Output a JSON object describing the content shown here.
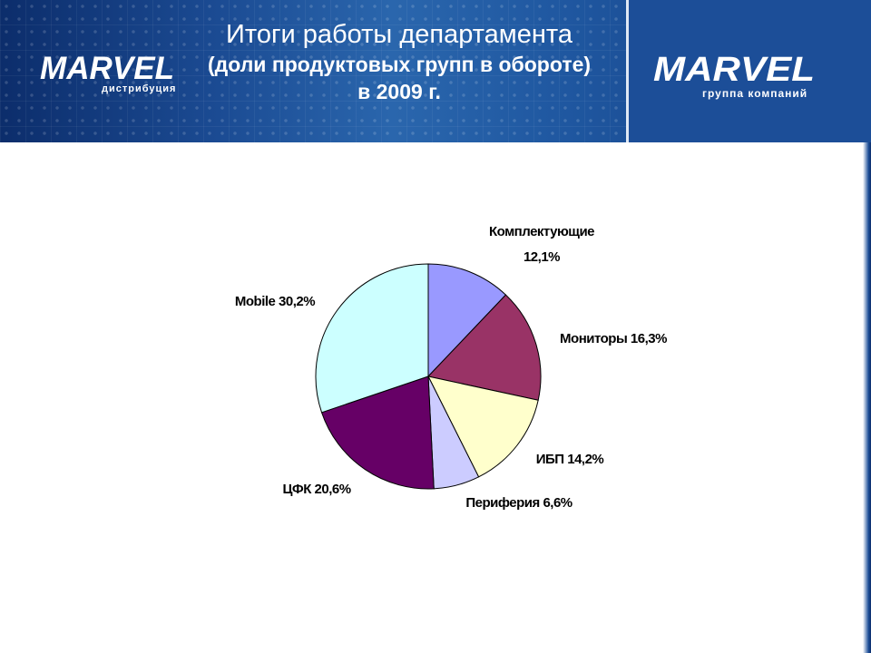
{
  "header": {
    "title_line1": "Итоги работы департамента",
    "title_line2": "(доли продуктовых групп в обороте)",
    "title_line3": "в 2009 г.",
    "logo_left_text": "MARVEL",
    "logo_left_sub": "дистрибуция",
    "logo_right_text": "MARVEL",
    "logo_right_sub": "группа компаний"
  },
  "chart_data": {
    "type": "pie",
    "title": "",
    "slices": [
      {
        "label": "Комплектующие",
        "value": 12.1,
        "display": "12,1%",
        "color": "#9999ff"
      },
      {
        "label": "Мониторы",
        "value": 16.3,
        "display": "16,3%",
        "color": "#993366"
      },
      {
        "label": "ИБП",
        "value": 14.2,
        "display": "14,2%",
        "color": "#ffffcc"
      },
      {
        "label": "Периферия",
        "value": 6.6,
        "display": "6,6%",
        "color": "#ccccff"
      },
      {
        "label": "ЦФК",
        "value": 20.6,
        "display": "20,6%",
        "color": "#660066"
      },
      {
        "label": "Mobile",
        "value": 30.2,
        "display": "30,2%",
        "color": "#ccffff"
      }
    ],
    "start_angle": "12 o'clock",
    "direction": "clockwise",
    "legend": "none"
  }
}
